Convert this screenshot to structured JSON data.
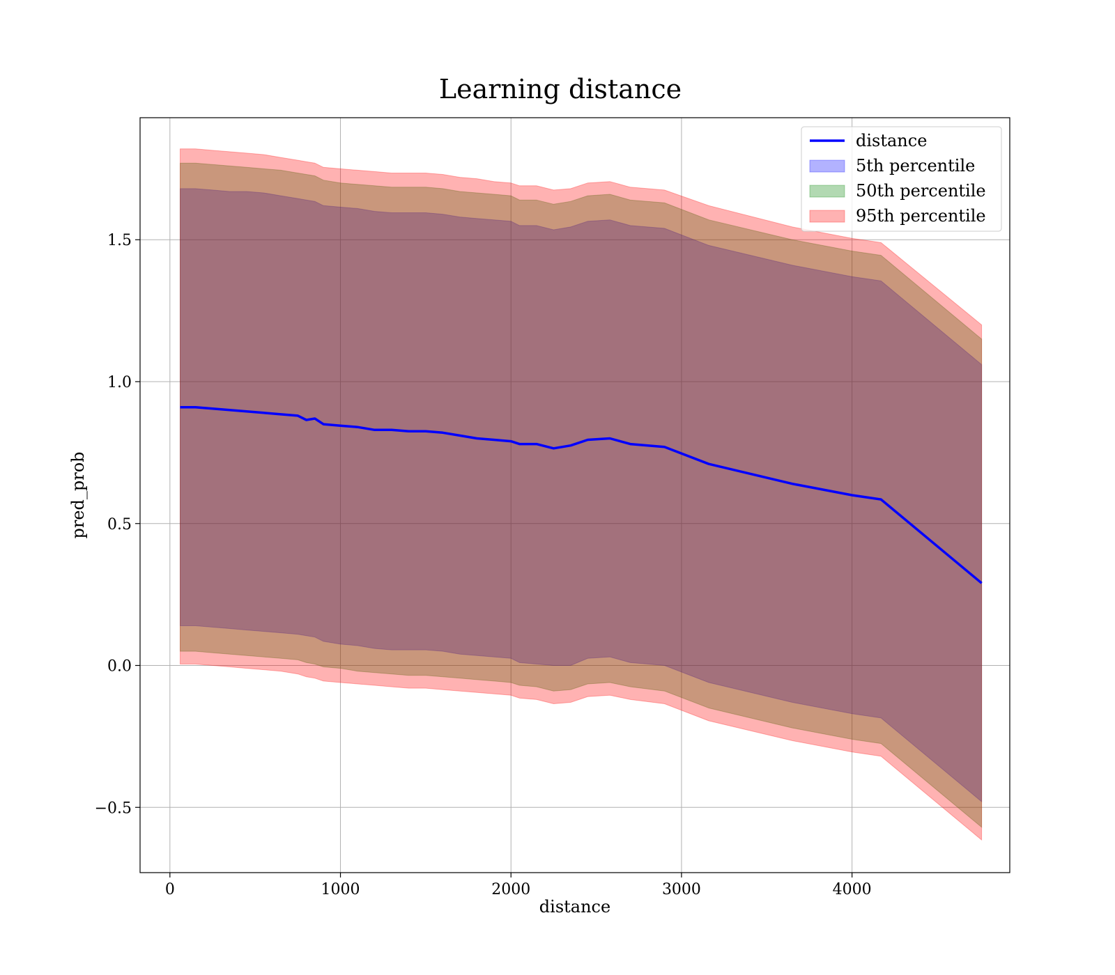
{
  "chart_data": {
    "type": "line",
    "title": "Learning distance",
    "xlabel": "distance",
    "ylabel": "pred_prob",
    "xlim": [
      -175,
      4925
    ],
    "ylim": [
      -0.73,
      1.93
    ],
    "xticks": [
      0,
      1000,
      2000,
      3000,
      4000
    ],
    "yticks": [
      -0.5,
      0.0,
      0.5,
      1.0,
      1.5
    ],
    "ytick_labels": [
      "−0.5",
      "0.0",
      "0.5",
      "1.0",
      "1.5"
    ],
    "grid": true,
    "legend_position": "top-right",
    "x": [
      60,
      150,
      250,
      350,
      450,
      550,
      650,
      750,
      800,
      850,
      900,
      1000,
      1100,
      1200,
      1300,
      1400,
      1500,
      1600,
      1700,
      1800,
      1900,
      2000,
      2050,
      2150,
      2250,
      2350,
      2450,
      2580,
      2700,
      2900,
      3160,
      3650,
      4000,
      4170,
      4760
    ],
    "series": [
      {
        "name": "distance",
        "kind": "line",
        "color": "#0000ff",
        "values": [
          0.91,
          0.91,
          0.905,
          0.9,
          0.895,
          0.89,
          0.885,
          0.88,
          0.865,
          0.87,
          0.85,
          0.845,
          0.84,
          0.83,
          0.83,
          0.825,
          0.825,
          0.82,
          0.81,
          0.8,
          0.795,
          0.79,
          0.78,
          0.78,
          0.765,
          0.775,
          0.795,
          0.8,
          0.78,
          0.77,
          0.71,
          0.64,
          0.6,
          0.585,
          0.29
        ]
      },
      {
        "name": "5th percentile",
        "kind": "band",
        "color": "#0000ff",
        "lower": [
          0.14,
          0.14,
          0.135,
          0.13,
          0.125,
          0.12,
          0.115,
          0.11,
          0.105,
          0.1,
          0.085,
          0.075,
          0.07,
          0.06,
          0.055,
          0.055,
          0.055,
          0.05,
          0.04,
          0.035,
          0.03,
          0.025,
          0.01,
          0.005,
          0.0,
          0.0,
          0.025,
          0.03,
          0.01,
          0.0,
          -0.06,
          -0.13,
          -0.17,
          -0.185,
          -0.48
        ],
        "upper": [
          1.68,
          1.68,
          1.675,
          1.67,
          1.67,
          1.665,
          1.655,
          1.645,
          1.64,
          1.635,
          1.62,
          1.615,
          1.61,
          1.6,
          1.595,
          1.595,
          1.595,
          1.59,
          1.58,
          1.575,
          1.57,
          1.565,
          1.55,
          1.55,
          1.535,
          1.545,
          1.565,
          1.57,
          1.55,
          1.54,
          1.48,
          1.41,
          1.37,
          1.355,
          1.06
        ]
      },
      {
        "name": "50th percentile",
        "kind": "band",
        "color": "#008000",
        "lower": [
          0.05,
          0.05,
          0.045,
          0.04,
          0.035,
          0.03,
          0.025,
          0.02,
          0.01,
          0.005,
          -0.005,
          -0.01,
          -0.02,
          -0.025,
          -0.03,
          -0.035,
          -0.035,
          -0.04,
          -0.045,
          -0.05,
          -0.055,
          -0.06,
          -0.07,
          -0.075,
          -0.09,
          -0.085,
          -0.065,
          -0.06,
          -0.075,
          -0.09,
          -0.15,
          -0.22,
          -0.26,
          -0.275,
          -0.57
        ],
        "upper": [
          1.77,
          1.77,
          1.765,
          1.76,
          1.755,
          1.75,
          1.745,
          1.735,
          1.73,
          1.725,
          1.71,
          1.7,
          1.695,
          1.69,
          1.685,
          1.685,
          1.685,
          1.68,
          1.67,
          1.665,
          1.66,
          1.655,
          1.64,
          1.64,
          1.625,
          1.635,
          1.655,
          1.66,
          1.64,
          1.63,
          1.57,
          1.5,
          1.46,
          1.445,
          1.15
        ]
      },
      {
        "name": "95th percentile",
        "kind": "band",
        "color": "#ff0000",
        "lower": [
          0.005,
          0.005,
          0.0,
          -0.005,
          -0.01,
          -0.015,
          -0.02,
          -0.03,
          -0.04,
          -0.045,
          -0.055,
          -0.06,
          -0.065,
          -0.07,
          -0.075,
          -0.08,
          -0.08,
          -0.085,
          -0.09,
          -0.095,
          -0.1,
          -0.105,
          -0.115,
          -0.12,
          -0.135,
          -0.13,
          -0.11,
          -0.105,
          -0.12,
          -0.135,
          -0.195,
          -0.265,
          -0.305,
          -0.32,
          -0.615
        ],
        "upper": [
          1.82,
          1.82,
          1.815,
          1.81,
          1.805,
          1.8,
          1.79,
          1.78,
          1.775,
          1.77,
          1.755,
          1.75,
          1.745,
          1.74,
          1.735,
          1.735,
          1.735,
          1.73,
          1.72,
          1.715,
          1.705,
          1.7,
          1.69,
          1.69,
          1.675,
          1.68,
          1.7,
          1.705,
          1.685,
          1.675,
          1.62,
          1.545,
          1.505,
          1.49,
          1.2
        ]
      }
    ]
  }
}
